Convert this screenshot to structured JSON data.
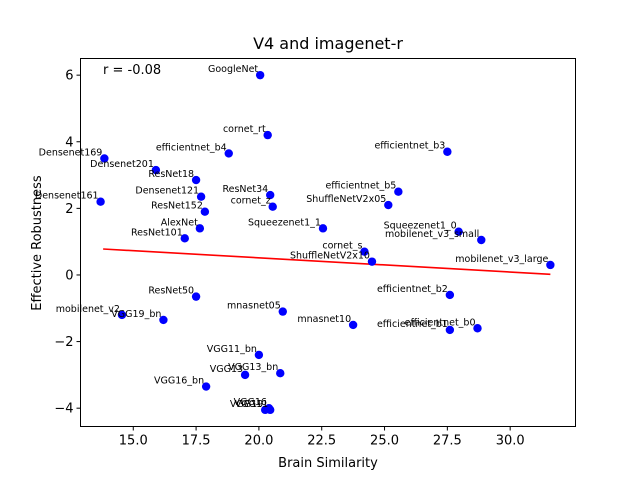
{
  "chart_data": {
    "type": "scatter",
    "title": "V4 and imagenet-r",
    "xlabel": "Brain Similarity",
    "ylabel": "Effective Robustness",
    "annotation": "r = -0.08",
    "xlim": [
      12.9,
      32.6
    ],
    "ylim": [
      -4.55,
      6.5
    ],
    "xticks": [
      15.0,
      17.5,
      20.0,
      22.5,
      25.0,
      27.5,
      30.0
    ],
    "xtick_labels": [
      "15.0",
      "17.5",
      "20.0",
      "22.5",
      "25.0",
      "27.5",
      "30.0"
    ],
    "yticks": [
      -4,
      -2,
      0,
      2,
      4,
      6
    ],
    "ytick_labels": [
      "−4",
      "−2",
      "0",
      "2",
      "4",
      "6"
    ],
    "grid": false,
    "point_color": "#0000ff",
    "trend_color": "#ff0000",
    "trend_line": {
      "x": [
        13.8,
        31.6
      ],
      "y": [
        0.78,
        0.02
      ]
    },
    "points": [
      {
        "label": "GoogleNet",
        "x": 20.05,
        "y": 6.0
      },
      {
        "label": "cornet_rt",
        "x": 20.35,
        "y": 4.2
      },
      {
        "label": "efficientnet_b4",
        "x": 18.8,
        "y": 3.65
      },
      {
        "label": "efficientnet_b3",
        "x": 27.5,
        "y": 3.7
      },
      {
        "label": "Densenet169",
        "x": 13.85,
        "y": 3.5
      },
      {
        "label": "Densenet201",
        "x": 15.9,
        "y": 3.15
      },
      {
        "label": "ResNet18",
        "x": 17.5,
        "y": 2.85
      },
      {
        "label": "Densenet121",
        "x": 17.7,
        "y": 2.35
      },
      {
        "label": "ResNet34",
        "x": 20.45,
        "y": 2.4
      },
      {
        "label": "efficientnet_b5",
        "x": 25.55,
        "y": 2.5
      },
      {
        "label": "Densenet161",
        "x": 13.7,
        "y": 2.2
      },
      {
        "label": "ShuffleNetV2x05",
        "x": 25.15,
        "y": 2.1
      },
      {
        "label": "ResNet152",
        "x": 17.85,
        "y": 1.9
      },
      {
        "label": "cornet_z",
        "x": 20.55,
        "y": 2.05
      },
      {
        "label": "AlexNet",
        "x": 17.65,
        "y": 1.4
      },
      {
        "label": "Squeezenet1_1",
        "x": 22.55,
        "y": 1.4
      },
      {
        "label": "Squeezenet1_0",
        "x": 27.95,
        "y": 1.3
      },
      {
        "label": "ResNet101",
        "x": 17.05,
        "y": 1.1
      },
      {
        "label": "mobilenet_v3_small",
        "x": 28.85,
        "y": 1.05
      },
      {
        "label": "cornet_s",
        "x": 24.2,
        "y": 0.7
      },
      {
        "label": "ShuffleNetV2x10",
        "x": 24.5,
        "y": 0.4
      },
      {
        "label": "mobilenet_v3_large",
        "x": 31.6,
        "y": 0.3
      },
      {
        "label": "ResNet50",
        "x": 17.5,
        "y": -0.65
      },
      {
        "label": "efficientnet_b2",
        "x": 27.6,
        "y": -0.6
      },
      {
        "label": "mobilenet_v2",
        "x": 14.55,
        "y": -1.2
      },
      {
        "label": "VGG19_bn",
        "x": 16.2,
        "y": -1.35
      },
      {
        "label": "mnasnet05",
        "x": 20.95,
        "y": -1.1
      },
      {
        "label": "mnasnet10",
        "x": 23.75,
        "y": -1.5
      },
      {
        "label": "efficientnet_b0",
        "x": 28.7,
        "y": -1.6
      },
      {
        "label": "efficientnet_b1",
        "x": 27.6,
        "y": -1.65
      },
      {
        "label": "VGG11_bn",
        "x": 20.0,
        "y": -2.4
      },
      {
        "label": "VGG13_bn",
        "x": 20.85,
        "y": -2.95
      },
      {
        "label": "VGG13",
        "x": 19.45,
        "y": -3.0
      },
      {
        "label": "VGG16_bn",
        "x": 17.9,
        "y": -3.35
      },
      {
        "label": "VGG16",
        "x": 20.4,
        "y": -4.0
      },
      {
        "label": "VGG19",
        "x": 20.25,
        "y": -4.05
      },
      {
        "label": "VGG11",
        "x": 20.45,
        "y": -4.05
      }
    ]
  }
}
